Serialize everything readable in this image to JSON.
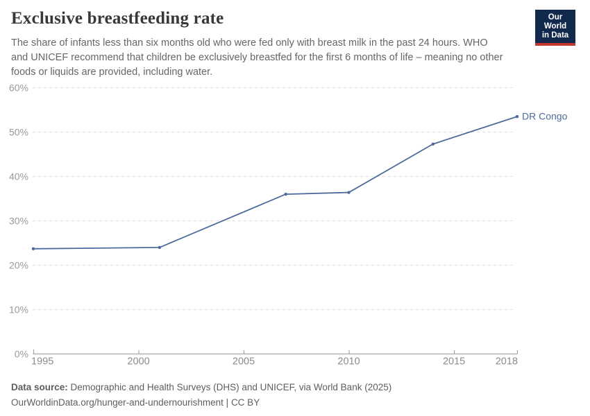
{
  "header": {
    "title": "Exclusive breastfeeding rate",
    "subtitle_lines": [
      "The share of infants less than six months old who were fed only with breast milk in the past 24 hours. WHO",
      "and UNICEF recommend that children be exclusively breastfed for the first 6 months of life – meaning no other",
      "foods or liquids are provided, including water."
    ]
  },
  "logo": {
    "line1": "Our World",
    "line2": "in Data",
    "bg_color": "#11294d",
    "accent_color": "#c2362b"
  },
  "chart_data": {
    "type": "line",
    "title": "Exclusive breastfeeding rate",
    "x": [
      1995,
      2001,
      2007,
      2010,
      2014,
      2018
    ],
    "series": [
      {
        "name": "DR Congo",
        "values": [
          23.7,
          24.0,
          36.0,
          36.4,
          47.3,
          53.5
        ]
      }
    ],
    "xlim": [
      1995,
      2018
    ],
    "ylim": [
      0,
      60
    ],
    "xticks": [
      1995,
      2000,
      2005,
      2010,
      2015,
      2018
    ],
    "yticks": [
      0,
      10,
      20,
      30,
      40,
      50,
      60
    ],
    "ytick_suffix": "%",
    "grid": "horizontal-dashed",
    "legend_position": "line-end-label",
    "colors": {
      "line": "#4c6a9c",
      "series_label": "#4c6a9c",
      "grid": "#e2e2e2",
      "axis": "#a6a6a6",
      "ytick_label": "#999999",
      "xtick_label": "#8c8c8c"
    }
  },
  "footer": {
    "source_label": "Data source:",
    "source_text": " Demographic and Health Surveys (DHS) and UNICEF, via World Bank (2025)",
    "link": "OurWorldinData.org/hunger-and-undernourishment",
    "separator": " | ",
    "license": "CC BY"
  }
}
